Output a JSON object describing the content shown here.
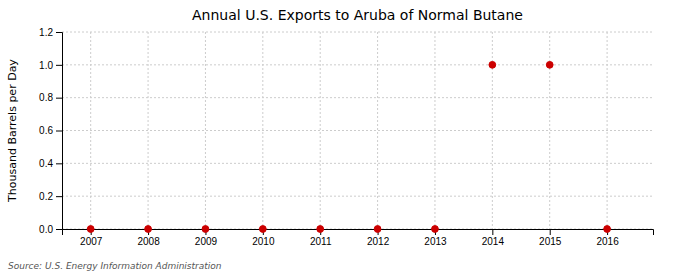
{
  "chart_data": {
    "type": "scatter",
    "title": "Annual U.S. Exports to Aruba of Normal Butane",
    "ylabel": "Thousand Barrels per Day",
    "annotations": [
      "Source: U.S. Energy Information Administration"
    ],
    "x": [
      2007,
      2008,
      2009,
      2010,
      2011,
      2012,
      2013,
      2014,
      2015,
      2016
    ],
    "values": [
      0.0,
      0.0,
      0.0,
      0.0,
      0.0,
      0.0,
      0.0,
      1.0,
      1.0,
      0.0
    ],
    "color": "#cc0000",
    "marker": "circle",
    "xlim": [
      2006.5,
      2016.8
    ],
    "ylim": [
      0.0,
      1.2
    ],
    "xticks": [
      2007,
      2008,
      2009,
      2010,
      2011,
      2012,
      2013,
      2014,
      2015,
      2016
    ],
    "yticks": [
      {
        "value": 0.0,
        "label": "0.0"
      },
      0.2,
      0.4,
      0.6,
      0.8,
      {
        "value": 1.0,
        "label": "1.0"
      },
      1.2
    ],
    "grid": true
  }
}
